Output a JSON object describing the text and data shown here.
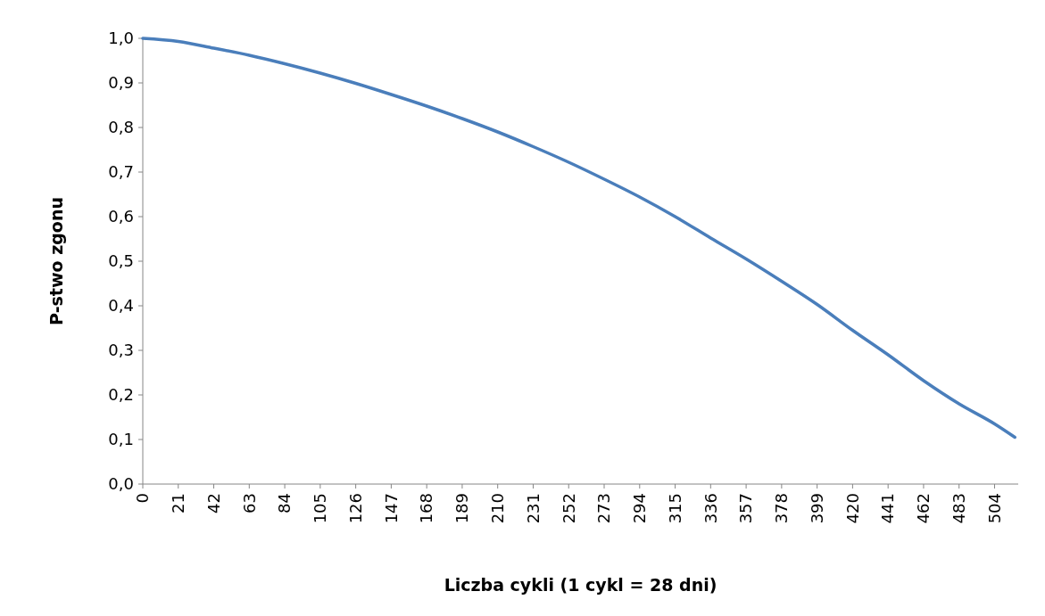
{
  "chart_data": {
    "type": "line",
    "xlabel": "Liczba cykli (1 cykl = 28 dni)",
    "ylabel": "P-stwo zgonu",
    "x": [
      0,
      21,
      42,
      63,
      84,
      105,
      126,
      147,
      168,
      189,
      210,
      231,
      252,
      273,
      294,
      315,
      336,
      357,
      378,
      399,
      420,
      441,
      462,
      483,
      504,
      516
    ],
    "series": [
      {
        "color": "#4a7ebb",
        "values": [
          1.0,
          0.993,
          0.978,
          0.962,
          0.943,
          0.922,
          0.899,
          0.874,
          0.848,
          0.82,
          0.79,
          0.757,
          0.722,
          0.684,
          0.644,
          0.6,
          0.552,
          0.505,
          0.455,
          0.403,
          0.345,
          0.29,
          0.232,
          0.18,
          0.135,
          0.105
        ]
      }
    ],
    "xlim": [
      0,
      518
    ],
    "xticks": [
      0,
      21,
      42,
      63,
      84,
      105,
      126,
      147,
      168,
      189,
      210,
      231,
      252,
      273,
      294,
      315,
      336,
      357,
      378,
      399,
      420,
      441,
      462,
      483,
      504
    ],
    "ylim": [
      0,
      1
    ],
    "yticks": [
      {
        "value": 0,
        "label": "0,0"
      },
      {
        "value": 0.1,
        "label": "0,1"
      },
      {
        "value": 0.2,
        "label": "0,2"
      },
      {
        "value": 0.3,
        "label": "0,3"
      },
      {
        "value": 0.4,
        "label": "0,4"
      },
      {
        "value": 0.5,
        "label": "0,5"
      },
      {
        "value": 0.6,
        "label": "0,6"
      },
      {
        "value": 0.7,
        "label": "0,7"
      },
      {
        "value": 0.8,
        "label": "0,8"
      },
      {
        "value": 0.9,
        "label": "0,9"
      },
      {
        "value": 1,
        "label": "1,0"
      }
    ],
    "grid": false,
    "marker": "none",
    "line_style": "solid"
  }
}
